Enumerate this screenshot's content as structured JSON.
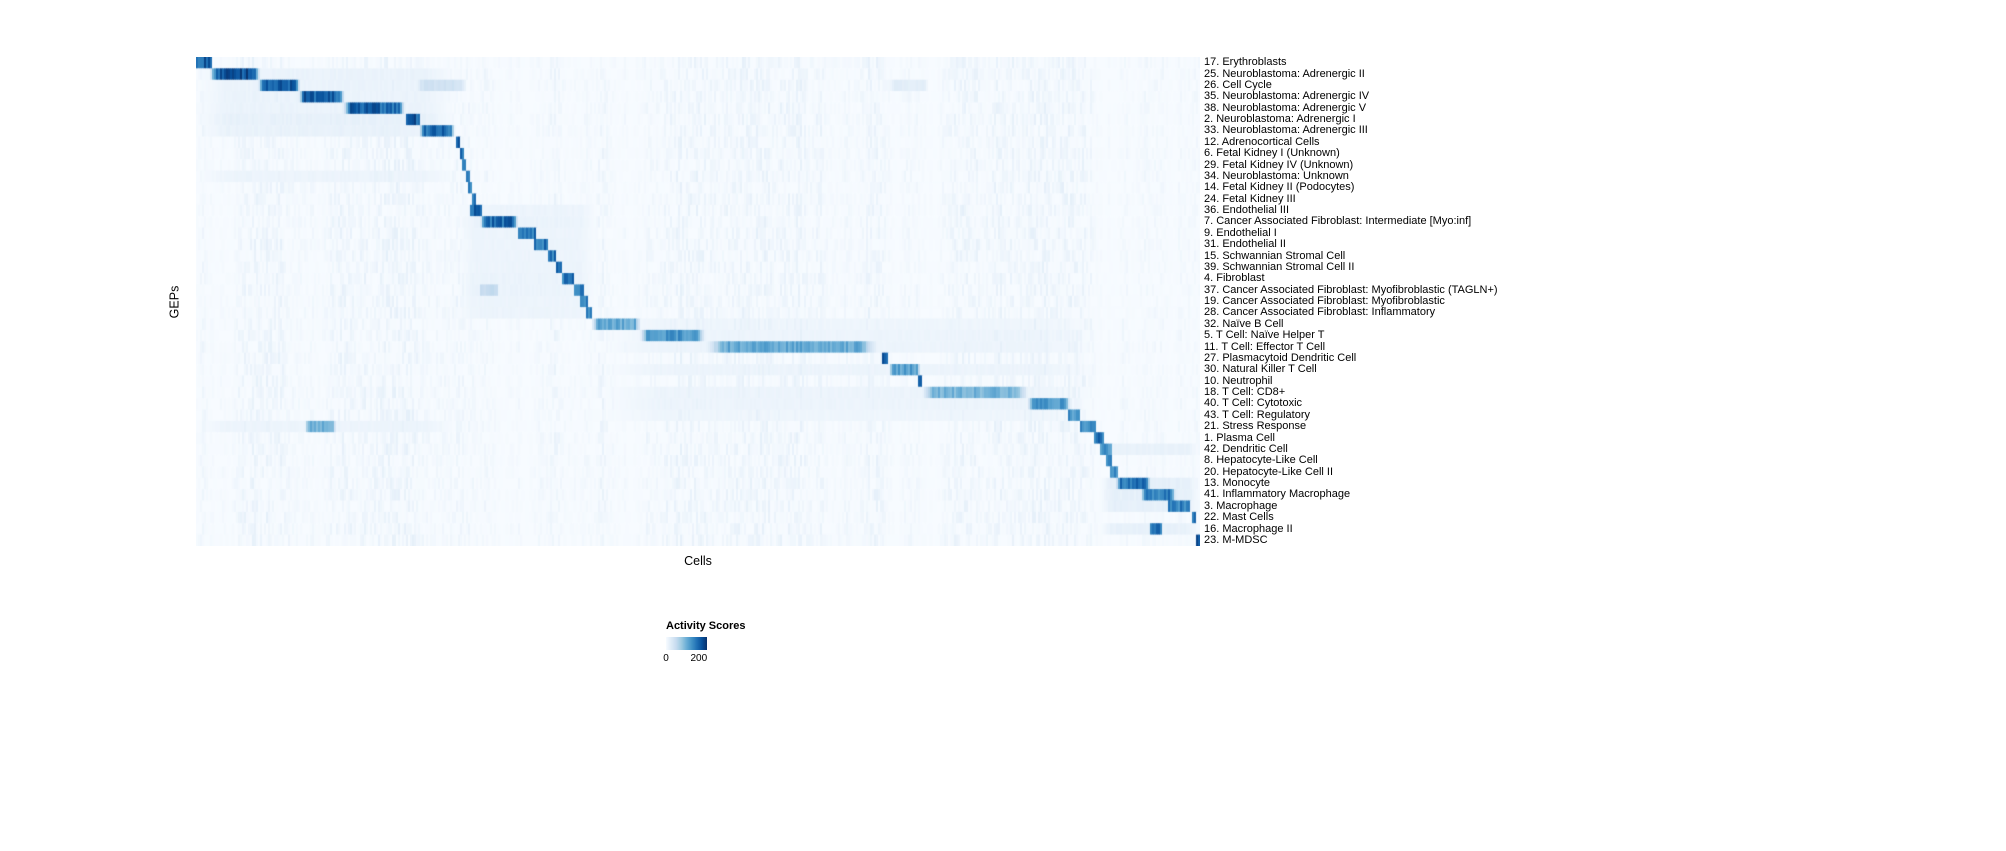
{
  "chart_data": {
    "type": "heatmap",
    "title": "",
    "xlabel": "Cells",
    "ylabel": "GEPs",
    "colormap": [
      "#f7fbff",
      "#deebf7",
      "#c6dbef",
      "#9ecae1",
      "#6baed6",
      "#4292c6",
      "#2171b5",
      "#08519c",
      "#08306b"
    ],
    "legend": {
      "title": "Activity Scores",
      "min": 0,
      "max": 200,
      "min_label": "0",
      "max_label": "200",
      "position": "bottom-center"
    },
    "layout": {
      "grid": false,
      "rows_count": 43,
      "diagonal_pattern": true
    },
    "rows": [
      {
        "label": "17. Erythroblasts",
        "blocks": [
          [
            0.0,
            0.016,
            0.95
          ]
        ]
      },
      {
        "label": "25. Neuroblastoma: Adrenergic II",
        "blocks": [
          [
            0.014,
            0.064,
            1.0
          ],
          [
            0.0,
            0.26,
            0.07
          ]
        ]
      },
      {
        "label": "26. Cell Cycle",
        "blocks": [
          [
            0.062,
            0.104,
            0.95
          ],
          [
            0.218,
            0.27,
            0.22
          ],
          [
            0.0,
            0.26,
            0.07
          ],
          [
            0.69,
            0.73,
            0.12
          ]
        ]
      },
      {
        "label": "35. Neuroblastoma: Adrenergic IV",
        "blocks": [
          [
            0.102,
            0.148,
            0.95
          ],
          [
            0.0,
            0.26,
            0.07
          ]
        ]
      },
      {
        "label": "38. Neuroblastoma: Adrenergic V",
        "blocks": [
          [
            0.146,
            0.209,
            0.92
          ],
          [
            0.0,
            0.26,
            0.07
          ]
        ]
      },
      {
        "label": "2. Neuroblastoma: Adrenergic I",
        "blocks": [
          [
            0.209,
            0.224,
            0.95
          ],
          [
            0.0,
            0.26,
            0.09
          ]
        ]
      },
      {
        "label": "33. Neuroblastoma: Adrenergic III",
        "blocks": [
          [
            0.222,
            0.258,
            0.9
          ],
          [
            0.0,
            0.26,
            0.08
          ]
        ]
      },
      {
        "label": "12. Adrenocortical Cells",
        "blocks": [
          [
            0.258,
            0.263,
            0.9
          ]
        ]
      },
      {
        "label": "6. Fetal Kidney I (Unknown)",
        "blocks": [
          [
            0.262,
            0.266,
            0.85
          ]
        ]
      },
      {
        "label": "29. Fetal Kidney IV (Unknown)",
        "blocks": [
          [
            0.265,
            0.269,
            0.85
          ]
        ]
      },
      {
        "label": "34. Neuroblastoma: Unknown",
        "blocks": [
          [
            0.268,
            0.272,
            0.85
          ],
          [
            0.0,
            0.26,
            0.06
          ]
        ]
      },
      {
        "label": "14. Fetal Kidney II (Podocytes)",
        "blocks": [
          [
            0.271,
            0.275,
            0.85
          ]
        ]
      },
      {
        "label": "24. Fetal Kidney III",
        "blocks": [
          [
            0.274,
            0.279,
            0.85
          ]
        ]
      },
      {
        "label": "36. Endothelial III",
        "blocks": [
          [
            0.272,
            0.284,
            0.9
          ],
          [
            0.26,
            0.4,
            0.06
          ]
        ]
      },
      {
        "label": "7. Cancer Associated Fibroblast: Intermediate [Myo:inf]",
        "blocks": [
          [
            0.283,
            0.321,
            0.9
          ],
          [
            0.26,
            0.4,
            0.07
          ]
        ]
      },
      {
        "label": "9. Endothelial I",
        "blocks": [
          [
            0.32,
            0.338,
            0.85
          ],
          [
            0.26,
            0.4,
            0.06
          ]
        ]
      },
      {
        "label": "31. Endothelial II",
        "blocks": [
          [
            0.337,
            0.351,
            0.85
          ],
          [
            0.26,
            0.4,
            0.06
          ]
        ]
      },
      {
        "label": "15. Schwannian Stromal Cell",
        "blocks": [
          [
            0.35,
            0.359,
            0.85
          ],
          [
            0.26,
            0.4,
            0.06
          ]
        ]
      },
      {
        "label": "39. Schwannian Stromal Cell II",
        "blocks": [
          [
            0.358,
            0.365,
            0.85
          ],
          [
            0.26,
            0.4,
            0.06
          ]
        ]
      },
      {
        "label": "4. Fibroblast",
        "blocks": [
          [
            0.364,
            0.377,
            0.85
          ],
          [
            0.26,
            0.4,
            0.07
          ]
        ]
      },
      {
        "label": "37. Cancer Associated Fibroblast: Myofibroblastic (TAGLN+)",
        "blocks": [
          [
            0.376,
            0.386,
            0.85
          ],
          [
            0.283,
            0.3,
            0.28
          ],
          [
            0.26,
            0.4,
            0.07
          ]
        ]
      },
      {
        "label": "19. Cancer Associated Fibroblast: Myofibroblastic",
        "blocks": [
          [
            0.382,
            0.391,
            0.8
          ],
          [
            0.26,
            0.4,
            0.06
          ]
        ]
      },
      {
        "label": "28. Cancer Associated Fibroblast: Inflammatory",
        "blocks": [
          [
            0.388,
            0.395,
            0.8
          ],
          [
            0.26,
            0.4,
            0.06
          ]
        ]
      },
      {
        "label": "32. Naïve B Cell",
        "blocks": [
          [
            0.394,
            0.443,
            0.6
          ],
          [
            0.4,
            0.9,
            0.05
          ]
        ]
      },
      {
        "label": "5. T Cell: Naïve Helper T",
        "blocks": [
          [
            0.442,
            0.507,
            0.7
          ],
          [
            0.4,
            0.9,
            0.06
          ]
        ]
      },
      {
        "label": "11. T Cell: Effector T Cell",
        "blocks": [
          [
            0.506,
            0.681,
            0.6
          ],
          [
            0.4,
            0.9,
            0.06
          ]
        ]
      },
      {
        "label": "27. Plasmacytoid Dendritic Cell",
        "blocks": [
          [
            0.684,
            0.69,
            0.9
          ]
        ]
      },
      {
        "label": "30. Natural Killer T Cell",
        "blocks": [
          [
            0.69,
            0.722,
            0.65
          ],
          [
            0.4,
            0.9,
            0.06
          ]
        ]
      },
      {
        "label": "10. Neutrophil",
        "blocks": [
          [
            0.719,
            0.724,
            0.85
          ]
        ]
      },
      {
        "label": "18. T Cell: CD8+",
        "blocks": [
          [
            0.722,
            0.83,
            0.55
          ],
          [
            0.4,
            0.9,
            0.06
          ]
        ]
      },
      {
        "label": "40. T Cell: Cytotoxic",
        "blocks": [
          [
            0.828,
            0.871,
            0.7
          ],
          [
            0.4,
            0.9,
            0.06
          ]
        ]
      },
      {
        "label": "43. T Cell: Regulatory",
        "blocks": [
          [
            0.869,
            0.881,
            0.7
          ],
          [
            0.4,
            0.9,
            0.05
          ]
        ]
      },
      {
        "label": "21. Stress Response",
        "blocks": [
          [
            0.108,
            0.14,
            0.55
          ],
          [
            0.88,
            0.896,
            0.75
          ],
          [
            0.0,
            0.26,
            0.06
          ]
        ]
      },
      {
        "label": "1. Plasma Cell",
        "blocks": [
          [
            0.895,
            0.904,
            0.85
          ]
        ]
      },
      {
        "label": "42. Dendritic Cell",
        "blocks": [
          [
            0.9,
            0.912,
            0.7
          ],
          [
            0.9,
            1.0,
            0.08
          ]
        ]
      },
      {
        "label": "8. Hepatocyte-Like Cell",
        "blocks": [
          [
            0.906,
            0.913,
            0.75
          ]
        ]
      },
      {
        "label": "20. Hepatocyte-Like Cell II",
        "blocks": [
          [
            0.911,
            0.919,
            0.75
          ]
        ]
      },
      {
        "label": "13. Monocyte",
        "blocks": [
          [
            0.916,
            0.951,
            0.85
          ],
          [
            0.9,
            1.0,
            0.1
          ]
        ]
      },
      {
        "label": "41. Inflammatory Macrophage",
        "blocks": [
          [
            0.941,
            0.976,
            0.8
          ],
          [
            0.9,
            1.0,
            0.1
          ]
        ]
      },
      {
        "label": "3. Macrophage",
        "blocks": [
          [
            0.968,
            0.99,
            0.8
          ],
          [
            0.9,
            1.0,
            0.1
          ]
        ]
      },
      {
        "label": "22. Mast Cells",
        "blocks": [
          [
            0.992,
            0.996,
            0.9
          ]
        ]
      },
      {
        "label": "16. Macrophage II",
        "blocks": [
          [
            0.95,
            0.963,
            0.85
          ],
          [
            0.9,
            1.0,
            0.09
          ]
        ]
      },
      {
        "label": "23. M-MDSC",
        "blocks": [
          [
            0.996,
            1.0,
            0.95
          ]
        ]
      }
    ]
  }
}
